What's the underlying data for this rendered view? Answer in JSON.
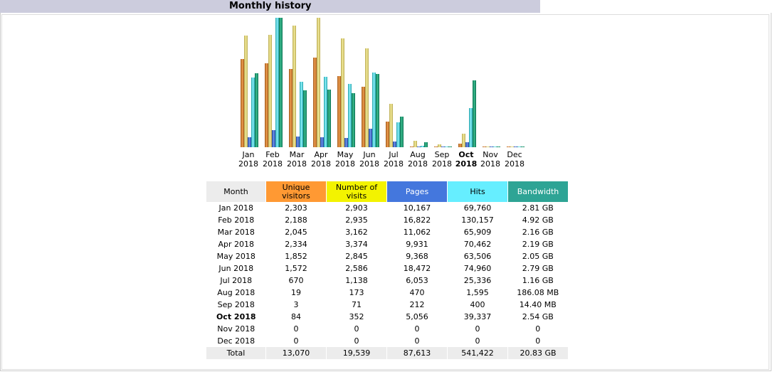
{
  "header": {
    "title": "Monthly history"
  },
  "colors": {
    "visitors": "#ff9933",
    "visits": "#f3f300",
    "pages": "#4477dd",
    "hits": "#66eeff",
    "bandwidth": "#2ea495"
  },
  "table": {
    "headers": {
      "month": "Month",
      "visitors_1": "Unique",
      "visitors_2": "visitors",
      "visits_1": "Number of",
      "visits_2": "visits",
      "pages": "Pages",
      "hits": "Hits",
      "bandwidth": "Bandwidth"
    },
    "rows": [
      {
        "month": "Jan 2018",
        "visitors": "2,303",
        "visits": "2,903",
        "pages": "10,167",
        "hits": "69,760",
        "bandwidth": "2.81 GB"
      },
      {
        "month": "Feb 2018",
        "visitors": "2,188",
        "visits": "2,935",
        "pages": "16,822",
        "hits": "130,157",
        "bandwidth": "4.92 GB"
      },
      {
        "month": "Mar 2018",
        "visitors": "2,045",
        "visits": "3,162",
        "pages": "11,062",
        "hits": "65,909",
        "bandwidth": "2.16 GB"
      },
      {
        "month": "Apr 2018",
        "visitors": "2,334",
        "visits": "3,374",
        "pages": "9,931",
        "hits": "70,462",
        "bandwidth": "2.19 GB"
      },
      {
        "month": "May 2018",
        "visitors": "1,852",
        "visits": "2,845",
        "pages": "9,368",
        "hits": "63,506",
        "bandwidth": "2.05 GB"
      },
      {
        "month": "Jun 2018",
        "visitors": "1,572",
        "visits": "2,586",
        "pages": "18,472",
        "hits": "74,960",
        "bandwidth": "2.79 GB"
      },
      {
        "month": "Jul 2018",
        "visitors": "670",
        "visits": "1,138",
        "pages": "6,053",
        "hits": "25,336",
        "bandwidth": "1.16 GB"
      },
      {
        "month": "Aug 2018",
        "visitors": "19",
        "visits": "173",
        "pages": "470",
        "hits": "1,595",
        "bandwidth": "186.08 MB"
      },
      {
        "month": "Sep 2018",
        "visitors": "3",
        "visits": "71",
        "pages": "212",
        "hits": "400",
        "bandwidth": "14.40 MB"
      },
      {
        "month": "Oct 2018",
        "visitors": "84",
        "visits": "352",
        "pages": "5,056",
        "hits": "39,337",
        "bandwidth": "2.54 GB"
      },
      {
        "month": "Nov 2018",
        "visitors": "0",
        "visits": "0",
        "pages": "0",
        "hits": "0",
        "bandwidth": "0"
      },
      {
        "month": "Dec 2018",
        "visitors": "0",
        "visits": "0",
        "pages": "0",
        "hits": "0",
        "bandwidth": "0"
      }
    ],
    "total": {
      "month": "Total",
      "visitors": "13,070",
      "visits": "19,539",
      "pages": "87,613",
      "hits": "541,422",
      "bandwidth": "20.83 GB"
    }
  },
  "current_month": "Oct 2018",
  "chart_data": {
    "type": "bar",
    "categories": [
      "Jan",
      "Feb",
      "Mar",
      "Apr",
      "May",
      "Jun",
      "Jul",
      "Aug",
      "Sep",
      "Oct",
      "Nov",
      "Dec"
    ],
    "category_years": [
      "2018",
      "2018",
      "2018",
      "2018",
      "2018",
      "2018",
      "2018",
      "2018",
      "2018",
      "2018",
      "2018",
      "2018"
    ],
    "current_index": 9,
    "series": [
      {
        "key": "visitors",
        "values": [
          2303,
          2188,
          2045,
          2334,
          1852,
          1572,
          670,
          19,
          3,
          84,
          0,
          0
        ]
      },
      {
        "key": "visits",
        "values": [
          2903,
          2935,
          3162,
          3374,
          2845,
          2586,
          1138,
          173,
          71,
          352,
          0,
          0
        ]
      },
      {
        "key": "pages",
        "values": [
          10167,
          16822,
          11062,
          9931,
          9368,
          18472,
          6053,
          470,
          212,
          5056,
          0,
          0
        ]
      },
      {
        "key": "hits",
        "values": [
          69760,
          130157,
          65909,
          70462,
          63506,
          74960,
          25336,
          1595,
          400,
          39337,
          0,
          0
        ]
      },
      {
        "key": "bandwidth",
        "unit": "GB",
        "values": [
          2.81,
          4.92,
          2.16,
          2.19,
          2.05,
          2.79,
          1.16,
          0.182,
          0.014,
          2.54,
          0,
          0
        ]
      }
    ]
  }
}
